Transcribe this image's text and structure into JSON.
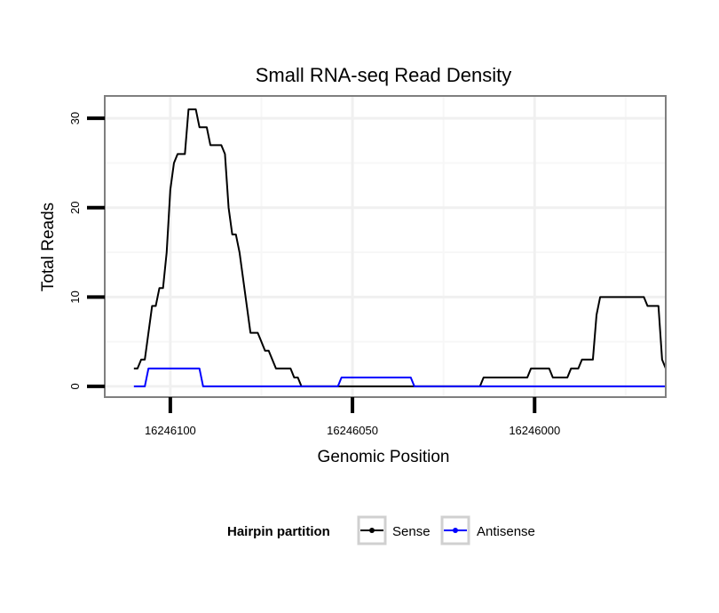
{
  "chart_data": {
    "type": "line",
    "title": "Small RNA-seq Read Density",
    "xlabel": "Genomic Position",
    "ylabel": "Total Reads",
    "x_reversed": true,
    "xlim": [
      16246118,
      16245964
    ],
    "ylim": [
      -1.2,
      32.5
    ],
    "x_ticks": [
      {
        "value": 16246100,
        "label": "16246100"
      },
      {
        "value": 16246050,
        "label": "16246050"
      },
      {
        "value": 16246000,
        "label": "16246000"
      }
    ],
    "y_ticks": [
      {
        "value": 0,
        "label": "0"
      },
      {
        "value": 10,
        "label": "10"
      },
      {
        "value": 20,
        "label": "20"
      },
      {
        "value": 30,
        "label": "30"
      }
    ],
    "grid": true,
    "legend": {
      "title": "Hairpin partition",
      "placement": "bottom",
      "entries": [
        {
          "name": "Sense",
          "color": "#000000"
        },
        {
          "name": "Antisense",
          "color": "#0000ff"
        }
      ]
    },
    "series": [
      {
        "name": "Sense",
        "color": "#000000",
        "points": [
          [
            16246110,
            2
          ],
          [
            16246109,
            2
          ],
          [
            16246108,
            3
          ],
          [
            16246107,
            3
          ],
          [
            16246106,
            6
          ],
          [
            16246105,
            9
          ],
          [
            16246104,
            9
          ],
          [
            16246103,
            11
          ],
          [
            16246102,
            11
          ],
          [
            16246101,
            15
          ],
          [
            16246100,
            22
          ],
          [
            16246099,
            25
          ],
          [
            16246098,
            26
          ],
          [
            16246097,
            26
          ],
          [
            16246096,
            26
          ],
          [
            16246095,
            31
          ],
          [
            16246094,
            31
          ],
          [
            16246093,
            31
          ],
          [
            16246092,
            29
          ],
          [
            16246091,
            29
          ],
          [
            16246090,
            29
          ],
          [
            16246089,
            27
          ],
          [
            16246088,
            27
          ],
          [
            16246087,
            27
          ],
          [
            16246086,
            27
          ],
          [
            16246085,
            26
          ],
          [
            16246084,
            20
          ],
          [
            16246083,
            17
          ],
          [
            16246082,
            17
          ],
          [
            16246081,
            15
          ],
          [
            16246080,
            12
          ],
          [
            16246079,
            9
          ],
          [
            16246078,
            6
          ],
          [
            16246077,
            6
          ],
          [
            16246076,
            6
          ],
          [
            16246075,
            5
          ],
          [
            16246074,
            4
          ],
          [
            16246073,
            4
          ],
          [
            16246072,
            3
          ],
          [
            16246071,
            2
          ],
          [
            16246070,
            2
          ],
          [
            16246069,
            2
          ],
          [
            16246068,
            2
          ],
          [
            16246067,
            2
          ],
          [
            16246066,
            1
          ],
          [
            16246065,
            1
          ],
          [
            16246064,
            0
          ],
          [
            16246063,
            0
          ],
          [
            16246015,
            0
          ],
          [
            16246014,
            1
          ],
          [
            16246002,
            1
          ],
          [
            16246001,
            2
          ],
          [
            16245996,
            2
          ],
          [
            16245995,
            1
          ],
          [
            16245991,
            1
          ],
          [
            16245990,
            2
          ],
          [
            16245988,
            2
          ],
          [
            16245987,
            3
          ],
          [
            16245984,
            3
          ],
          [
            16245983,
            8
          ],
          [
            16245982,
            10
          ],
          [
            16245970,
            10
          ],
          [
            16245969,
            9
          ],
          [
            16245966,
            9
          ],
          [
            16245965,
            3
          ],
          [
            16245964,
            2
          ]
        ]
      },
      {
        "name": "Antisense",
        "color": "#0000ff",
        "points": [
          [
            16246110,
            0
          ],
          [
            16246107,
            0
          ],
          [
            16246106,
            2
          ],
          [
            16246093,
            2
          ],
          [
            16246092,
            2
          ],
          [
            16246091,
            0
          ],
          [
            16246054,
            0
          ],
          [
            16246053,
            1
          ],
          [
            16246034,
            1
          ],
          [
            16246033,
            0
          ],
          [
            16245964,
            0
          ]
        ]
      }
    ]
  }
}
